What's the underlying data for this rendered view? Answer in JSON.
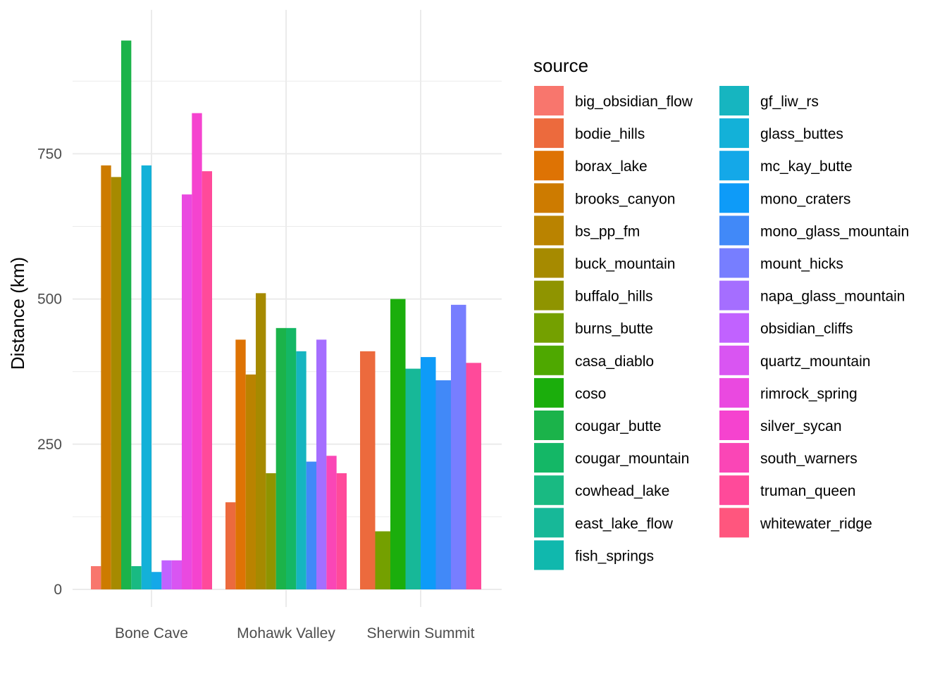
{
  "chart_data": {
    "type": "bar",
    "title": "",
    "xlabel": "",
    "ylabel": "Distance (km)",
    "ylim": [
      -30,
      950
    ],
    "yticks": [
      0,
      250,
      500,
      750
    ],
    "grid": true,
    "legend_title": "source",
    "legend_position": "right",
    "categories": [
      "Bone Cave",
      "Mohawk Valley",
      "Sherwin Summit"
    ],
    "series": [
      {
        "name": "big_obsidian_flow",
        "color": "#F8766D",
        "values": [
          40,
          null,
          null
        ]
      },
      {
        "name": "bodie_hills",
        "color": "#EC6A3D",
        "values": [
          null,
          150,
          410
        ]
      },
      {
        "name": "borax_lake",
        "color": "#DE7304",
        "values": [
          null,
          430,
          null
        ]
      },
      {
        "name": "brooks_canyon",
        "color": "#CD7B00",
        "values": [
          730,
          null,
          null
        ]
      },
      {
        "name": "bs_pp_fm",
        "color": "#BA8300",
        "values": [
          null,
          370,
          null
        ]
      },
      {
        "name": "buck_mountain",
        "color": "#A68A00",
        "values": [
          710,
          510,
          null
        ]
      },
      {
        "name": "buffalo_hills",
        "color": "#8F9400",
        "values": [
          null,
          200,
          null
        ]
      },
      {
        "name": "burns_butte",
        "color": "#74A000",
        "values": [
          null,
          null,
          100
        ]
      },
      {
        "name": "casa_diablo",
        "color": "#4EA800",
        "values": [
          null,
          null,
          null
        ]
      },
      {
        "name": "coso",
        "color": "#1BAE0C",
        "values": [
          null,
          null,
          500
        ]
      },
      {
        "name": "cougar_butte",
        "color": "#1BB34A",
        "values": [
          945,
          450,
          null
        ]
      },
      {
        "name": "cougar_mountain",
        "color": "#14B766",
        "values": [
          null,
          450,
          null
        ]
      },
      {
        "name": "cowhead_lake",
        "color": "#19BA82",
        "values": [
          40,
          null,
          null
        ]
      },
      {
        "name": "east_lake_flow",
        "color": "#17B898",
        "values": [
          null,
          null,
          380
        ]
      },
      {
        "name": "fish_springs",
        "color": "#10B8AD",
        "values": [
          null,
          null,
          null
        ]
      },
      {
        "name": "gf_liw_rs",
        "color": "#16B5C0",
        "values": [
          null,
          410,
          null
        ]
      },
      {
        "name": "glass_buttes",
        "color": "#13B1D8",
        "values": [
          730,
          null,
          null
        ]
      },
      {
        "name": "mc_kay_butte",
        "color": "#14A8E8",
        "values": [
          30,
          null,
          null
        ]
      },
      {
        "name": "mono_craters",
        "color": "#0E9BF8",
        "values": [
          null,
          null,
          400
        ]
      },
      {
        "name": "mono_glass_mountain",
        "color": "#4189F8",
        "values": [
          null,
          220,
          360
        ]
      },
      {
        "name": "mount_hicks",
        "color": "#777EFF",
        "values": [
          null,
          null,
          490
        ]
      },
      {
        "name": "napa_glass_mountain",
        "color": "#A56EFF",
        "values": [
          null,
          430,
          null
        ]
      },
      {
        "name": "obsidian_cliffs",
        "color": "#C162FF",
        "values": [
          50,
          null,
          null
        ]
      },
      {
        "name": "quartz_mountain",
        "color": "#D955F2",
        "values": [
          50,
          null,
          null
        ]
      },
      {
        "name": "rimrock_spring",
        "color": "#EA49E0",
        "values": [
          680,
          null,
          null
        ]
      },
      {
        "name": "silver_sycan",
        "color": "#F543CF",
        "values": [
          820,
          null,
          null
        ]
      },
      {
        "name": "south_warners",
        "color": "#FA46B6",
        "values": [
          null,
          230,
          null
        ]
      },
      {
        "name": "truman_queen",
        "color": "#FF4A9A",
        "values": [
          720,
          200,
          390
        ]
      },
      {
        "name": "whitewater_ridge",
        "color": "#FF567E",
        "values": [
          null,
          null,
          null
        ]
      }
    ]
  }
}
